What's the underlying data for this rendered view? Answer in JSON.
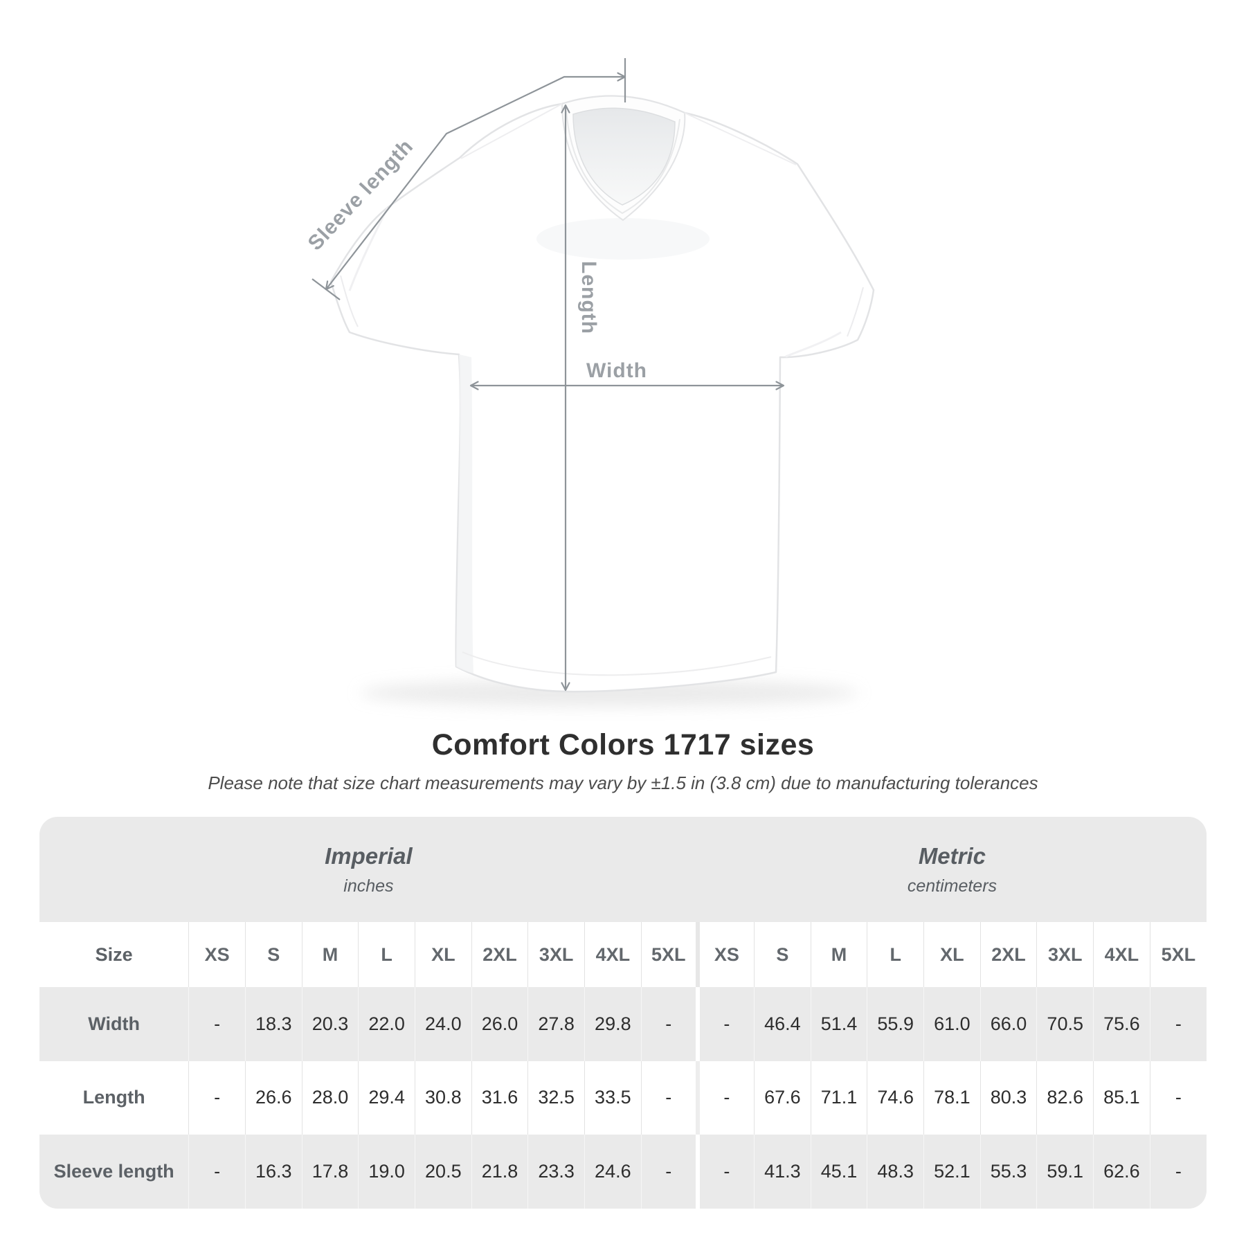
{
  "diagram": {
    "labels": {
      "sleeve": "Sleeve length",
      "length": "Length",
      "width": "Width"
    }
  },
  "heading": {
    "title": "Comfort Colors 1717 sizes",
    "subtitle": "Please note that size chart measurements may vary by ±1.5 in (3.8 cm) due to manufacturing tolerances"
  },
  "table": {
    "size_header_label": "Size",
    "unit_groups": [
      {
        "name": "Imperial",
        "unit": "inches"
      },
      {
        "name": "Metric",
        "unit": "centimeters"
      }
    ],
    "sizes": [
      "XS",
      "S",
      "M",
      "L",
      "XL",
      "2XL",
      "3XL",
      "4XL",
      "5XL"
    ],
    "rows": [
      {
        "label": "Width",
        "imperial": [
          "-",
          "18.3",
          "20.3",
          "22.0",
          "24.0",
          "26.0",
          "27.8",
          "29.8",
          "-"
        ],
        "metric": [
          "-",
          "46.4",
          "51.4",
          "55.9",
          "61.0",
          "66.0",
          "70.5",
          "75.6",
          "-"
        ]
      },
      {
        "label": "Length",
        "imperial": [
          "-",
          "26.6",
          "28.0",
          "29.4",
          "30.8",
          "31.6",
          "32.5",
          "33.5",
          "-"
        ],
        "metric": [
          "-",
          "67.6",
          "71.1",
          "74.6",
          "78.1",
          "80.3",
          "82.6",
          "85.1",
          "-"
        ]
      },
      {
        "label": "Sleeve length",
        "imperial": [
          "-",
          "16.3",
          "17.8",
          "19.0",
          "20.5",
          "21.8",
          "23.3",
          "24.6",
          "-"
        ],
        "metric": [
          "-",
          "41.3",
          "45.1",
          "48.3",
          "52.1",
          "55.3",
          "59.1",
          "62.6",
          "-"
        ]
      }
    ]
  },
  "colors": {
    "annotation_line": "#8e9499",
    "annotation_text": "#9ba0a5",
    "table_background": "#eaeaea",
    "title_text": "#2f2f2f"
  }
}
